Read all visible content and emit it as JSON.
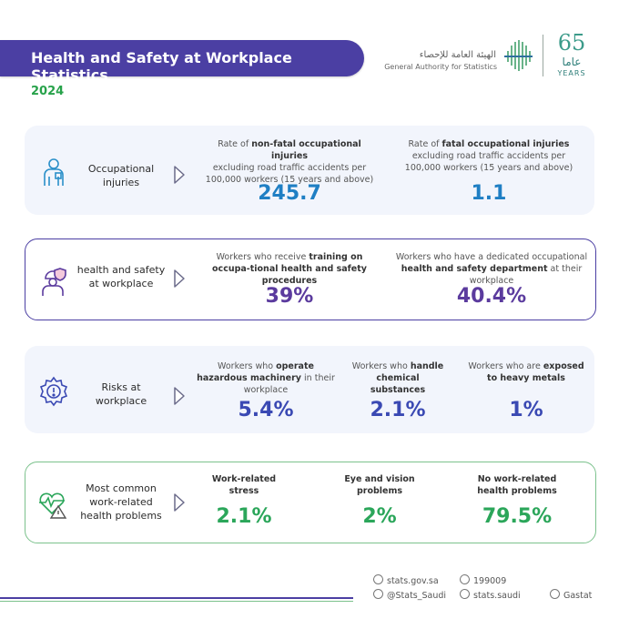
{
  "header": {
    "title": "Health and Safety at Workplace Statistics",
    "year": "2024",
    "logo_ar": "الهيئة العامة للإحصاء",
    "logo_en": "General Authority for Statistics",
    "anniv_number": "65",
    "anniv_ar": "عاما",
    "anniv_en": "YEARS"
  },
  "sections": [
    {
      "label": [
        "Occupational",
        "injuries"
      ],
      "icon": "person-injury-icon",
      "stats": [
        {
          "desc_pre": "Rate of ",
          "desc_bold": "non-fatal occupational injuries",
          "desc_post": "excluding road traffic accidents per 100,000 workers (15 years and above)",
          "value": "245.7"
        },
        {
          "desc_pre": "Rate of ",
          "desc_bold": "fatal occupational injuries",
          "desc_post": "excluding road traffic accidents per 100,000 workers (15 years and above)",
          "value": "1.1"
        }
      ]
    },
    {
      "label": [
        "health and safety",
        "at workplace"
      ],
      "icon": "worker-shield-icon",
      "stats": [
        {
          "desc_pre": "Workers who receive ",
          "desc_bold": "training on occupa-tional health and safety procedures",
          "desc_post": "",
          "value": "39%"
        },
        {
          "desc_pre": "Workers who have a dedicated occupational ",
          "desc_bold": "health and safety department",
          "desc_post": "at their workplace",
          "value": "40.4%"
        }
      ]
    },
    {
      "label": [
        "Risks at",
        "workplace"
      ],
      "icon": "gear-warning-icon",
      "stats": [
        {
          "desc_pre": "Workers who ",
          "desc_bold": "operate hazardous machinery",
          "desc_post": "in their workplace",
          "value": "5.4%"
        },
        {
          "desc_pre": "Workers who ",
          "desc_bold": "handle chemical substances",
          "desc_post": "",
          "value": "2.1%"
        },
        {
          "desc_pre": "Workers who are ",
          "desc_bold": "exposed to heavy metals",
          "desc_post": "",
          "value": "1%"
        }
      ]
    },
    {
      "label": [
        "Most common",
        "work-related",
        "health problems"
      ],
      "icon": "heart-warning-icon",
      "stats": [
        {
          "desc_pre": "",
          "desc_bold": "Work-related stress",
          "desc_post": "",
          "value": "2.1%"
        },
        {
          "desc_pre": "",
          "desc_bold": "Eye and vision problems",
          "desc_post": "",
          "value": "2%"
        },
        {
          "desc_pre": "",
          "desc_bold": "No work-related health problems",
          "desc_post": "",
          "value": "79.5%"
        }
      ]
    }
  ],
  "footer": {
    "website": "stats.gov.sa",
    "phone": "199009",
    "twitter": "@Stats_Saudi",
    "instagram": "stats.saudi",
    "linkedin": "Gastat"
  },
  "colors": {
    "brand_purple": "#4b3fa3",
    "accent_green": "#27a24a",
    "value_blue": "#1f7fc4",
    "value_purple": "#5b3b9e"
  }
}
